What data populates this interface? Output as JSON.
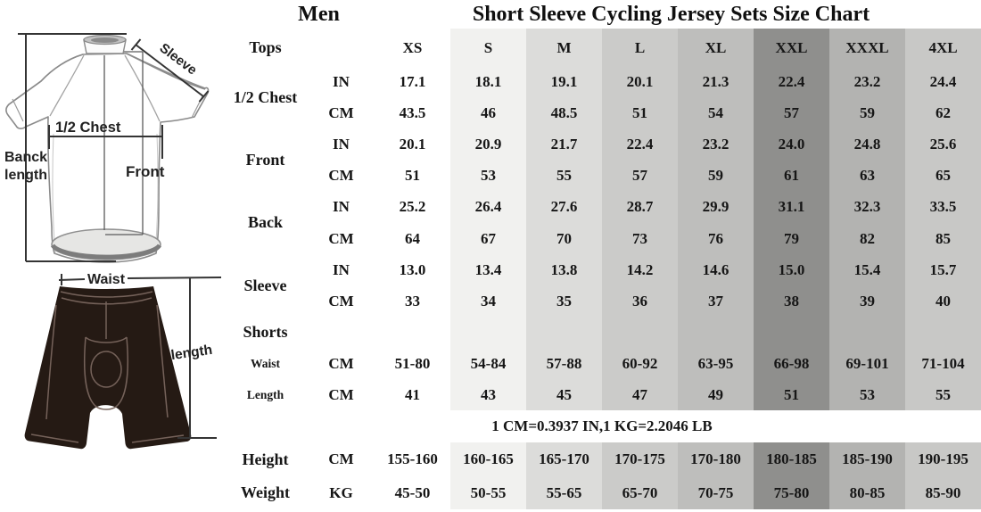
{
  "titles": {
    "gender": "Men"
  },
  "diagram": {
    "jersey_labels": {
      "sleeve": "Sleeve",
      "half_chest": "1/2 Chest",
      "back_length_line1": "Banck",
      "back_length_line2": "length",
      "front": "Front"
    },
    "shorts_labels": {
      "waist": "Waist",
      "length": "length"
    }
  },
  "colors": {
    "column_shades": [
      "transparent",
      "#f1f1ef",
      "#dcdcda",
      "#cbcbc9",
      "#bebebc",
      "#8f8f8d",
      "#b3b3b1",
      "#c8c8c6"
    ],
    "shorts_fill": "#251a14",
    "accent_text": "#161616"
  },
  "chart_data": {
    "type": "table",
    "title": "Short Sleeve Cycling Jersey Sets Size Chart",
    "corner_label": "Tops",
    "sizes": [
      "XS",
      "S",
      "M",
      "L",
      "XL",
      "XXL",
      "XXXL",
      "4XL"
    ],
    "sections": [
      {
        "label": "1/2 Chest",
        "small": false,
        "rows": [
          {
            "unit": "IN",
            "values": [
              "17.1",
              "18.1",
              "19.1",
              "20.1",
              "21.3",
              "22.4",
              "23.2",
              "24.4"
            ]
          },
          {
            "unit": "CM",
            "values": [
              "43.5",
              "46",
              "48.5",
              "51",
              "54",
              "57",
              "59",
              "62"
            ]
          }
        ]
      },
      {
        "label": "Front",
        "small": false,
        "rows": [
          {
            "unit": "IN",
            "values": [
              "20.1",
              "20.9",
              "21.7",
              "22.4",
              "23.2",
              "24.0",
              "24.8",
              "25.6"
            ]
          },
          {
            "unit": "CM",
            "values": [
              "51",
              "53",
              "55",
              "57",
              "59",
              "61",
              "63",
              "65"
            ]
          }
        ]
      },
      {
        "label": "Back",
        "small": false,
        "rows": [
          {
            "unit": "IN",
            "values": [
              "25.2",
              "26.4",
              "27.6",
              "28.7",
              "29.9",
              "31.1",
              "32.3",
              "33.5"
            ]
          },
          {
            "unit": "CM",
            "values": [
              "64",
              "67",
              "70",
              "73",
              "76",
              "79",
              "82",
              "85"
            ]
          }
        ]
      },
      {
        "label": "Sleeve",
        "small": false,
        "rows": [
          {
            "unit": "IN",
            "values": [
              "13.0",
              "13.4",
              "13.8",
              "14.2",
              "14.6",
              "15.0",
              "15.4",
              "15.7"
            ]
          },
          {
            "unit": "CM",
            "values": [
              "33",
              "34",
              "35",
              "36",
              "37",
              "38",
              "39",
              "40"
            ]
          }
        ]
      },
      {
        "label": "Shorts",
        "small": false,
        "rows": []
      },
      {
        "label": "Waist",
        "small": true,
        "rows": [
          {
            "unit": "CM",
            "values": [
              "51-80",
              "54-84",
              "57-88",
              "60-92",
              "63-95",
              "66-98",
              "69-101",
              "71-104"
            ]
          }
        ]
      },
      {
        "label": "Length",
        "small": true,
        "rows": [
          {
            "unit": "CM",
            "values": [
              "41",
              "43",
              "45",
              "47",
              "49",
              "51",
              "53",
              "55"
            ]
          }
        ]
      }
    ],
    "note": "1 CM=0.3937 IN,1 KG=2.2046 LB",
    "body_sections": [
      {
        "label": "Height",
        "rows": [
          {
            "unit": "CM",
            "values": [
              "155-160",
              "160-165",
              "165-170",
              "170-175",
              "170-180",
              "180-185",
              "185-190",
              "190-195"
            ]
          }
        ]
      },
      {
        "label": "Weight",
        "rows": [
          {
            "unit": "KG",
            "values": [
              "45-50",
              "50-55",
              "55-65",
              "65-70",
              "70-75",
              "75-80",
              "80-85",
              "85-90"
            ]
          }
        ]
      }
    ]
  }
}
